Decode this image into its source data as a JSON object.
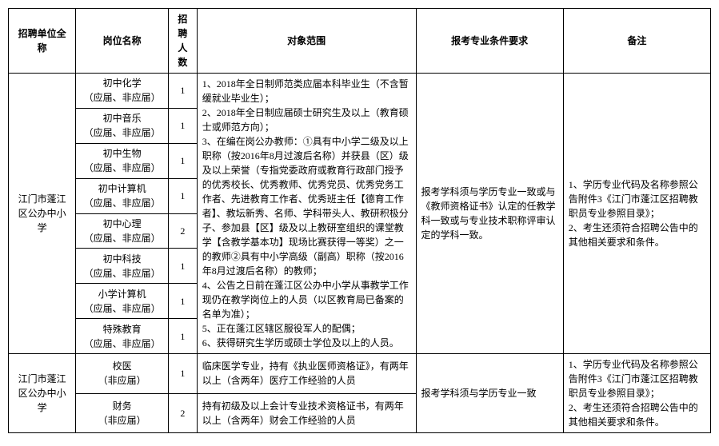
{
  "headers": {
    "unit": "招聘单位全称",
    "position": "岗位名称",
    "count": "招聘人数",
    "scope": "对象范围",
    "requirement": "报考专业条件要求",
    "note": "备注"
  },
  "unit_name": "江门市蓬江区公办中小学",
  "group1": {
    "positions": [
      {
        "name": "初中化学\n（应届、非应届）",
        "count": "1"
      },
      {
        "name": "初中音乐\n（应届、非应届）",
        "count": "1"
      },
      {
        "name": "初中生物\n（应届、非应届）",
        "count": "1"
      },
      {
        "name": "初中计算机\n（应届、非应届）",
        "count": "1"
      },
      {
        "name": "初中心理\n（应届、非应届）",
        "count": "2"
      },
      {
        "name": "初中科技\n（应届、非应届）",
        "count": "1"
      },
      {
        "name": "小学计算机\n（应届、非应届）",
        "count": "1"
      },
      {
        "name": "特殊教育\n（应届、非应届）",
        "count": "1"
      }
    ],
    "scope": "1、2018年全日制师范类应届本科毕业生（不含暂缓就业毕业生）；\n2、2018年全日制应届硕士研究生及以上（教育硕士或师范方向）；\n3、在编在岗公办教师：①具有中小学二级及以上职称（按2016年8月过渡后名称）并获县（区）级及以上荣誉（专指党委政府或教育行政部门授予的优秀校长、优秀教师、优秀党员、优秀党务工作者、先进教育工作者、优秀班主任【德育工作者】、教坛新秀、名师、学科带头人、教研积极分子、参加县【区】级及以上教研室组织的课堂教学【含教学基本功】现场比赛获得一等奖）之一的教师②具有中小学高级（副高）职称（按2016年8月过渡后名称）的教师；\n4、公告之日前在蓬江区公办中小学从事教学工作现仍在教学岗位上的人员（以区教育局已备案的名单为准）；\n5、正在蓬江区辖区服役军人的配偶；\n6、获得研究生学历或硕士学位及以上的人员。",
    "requirement": "报考学科须与学历专业一致或与《教师资格证书》认定的任教学科一致或与专业技术职称评审认定的学科一致。",
    "note": "1、学历专业代码及名称参照公告附件3《江门市蓬江区招聘教职员专业参照目录》；\n2、考生还须符合招聘公告中的其他相关要求和条件。"
  },
  "group2": {
    "positions": [
      {
        "name": "校医\n（非应届）",
        "count": "1",
        "scope": "临床医学专业，持有《执业医师资格证》，有两年以上（含两年）医疗工作经验的人员"
      },
      {
        "name": "财务\n（非应届）",
        "count": "2",
        "scope": "持有初级及以上会计专业技术资格证书，有两年以上（含两年）财会工作经验的人员"
      }
    ],
    "requirement": "报考学科须与学历专业一致",
    "note": "1、学历专业代码及名称参照公告附件3《江门市蓬江区招聘教职员专业参照目录》；\n2、考生还须符合招聘公告中的其他相关要求和条件。"
  }
}
